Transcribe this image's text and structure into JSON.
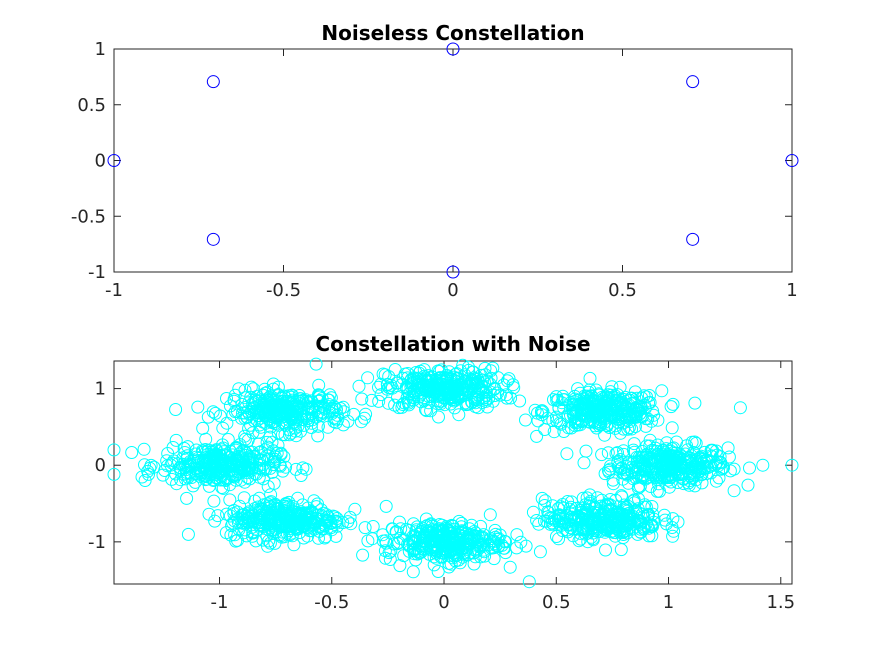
{
  "chart_data": [
    {
      "type": "scatter",
      "title": "Noiseless Constellation",
      "xlabel": "",
      "ylabel": "",
      "xlim": [
        -1,
        1
      ],
      "ylim": [
        -1,
        1
      ],
      "xticks": [
        "-1",
        "-0.5",
        "0",
        "0.5",
        "1"
      ],
      "yticks": [
        "1",
        "0.5",
        "0",
        "-0.5",
        "-1"
      ],
      "marker": "circle",
      "color": "#0000ff",
      "series": [
        {
          "x": [
            1,
            0.707,
            0,
            -0.707,
            -1,
            -0.707,
            0,
            0.707
          ],
          "y": [
            0,
            0.707,
            1,
            0.707,
            0,
            -0.707,
            -1,
            -0.707
          ]
        }
      ]
    },
    {
      "type": "scatter",
      "title": "Constellation with Noise",
      "xlabel": "",
      "ylabel": "",
      "xlim": [
        -1.47,
        1.55
      ],
      "ylim": [
        -1.55,
        1.36
      ],
      "xticks": [
        "-1",
        "-0.5",
        "0",
        "0.5",
        "1",
        "1.5"
      ],
      "yticks": [
        "1",
        "0",
        "-1"
      ],
      "marker": "circle",
      "color": "#00ffff",
      "series": [
        {
          "centers_x": [
            1,
            0.707,
            0,
            -0.707,
            -1,
            -0.707,
            0,
            0.707
          ],
          "centers_y": [
            0,
            0.707,
            1,
            0.707,
            0,
            -0.707,
            -1,
            -0.707
          ],
          "noise_std": 0.13,
          "points_per_symbol": 320,
          "outliers": [
            [
              1.55,
              0.0
            ],
            [
              -1.47,
              0.2
            ],
            [
              -1.47,
              -0.12
            ],
            [
              0.38,
              -1.52
            ],
            [
              -1.32,
              -0.08
            ],
            [
              1.42,
              0.0
            ],
            [
              -0.57,
              1.32
            ],
            [
              1.32,
              0.75
            ]
          ]
        }
      ]
    }
  ]
}
